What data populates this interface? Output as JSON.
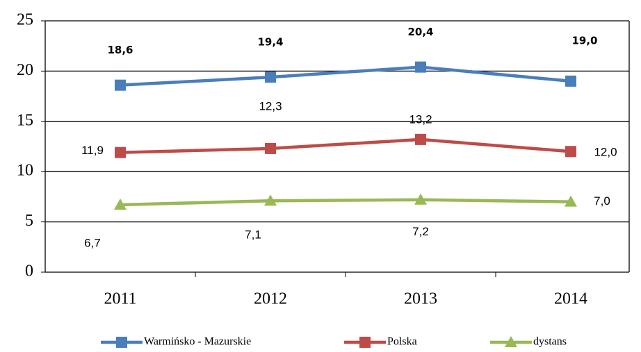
{
  "chart_data": {
    "type": "line",
    "categories": [
      "2011",
      "2012",
      "2013",
      "2014"
    ],
    "series": [
      {
        "name": "Warmińsko - Mazurskie",
        "color": "#4a7ebb",
        "marker": "square",
        "values": [
          18.6,
          19.4,
          20.4,
          19.0
        ],
        "value_labels": [
          "18,6",
          "19,4",
          "20,4",
          "19,0"
        ]
      },
      {
        "name": "Polska",
        "color": "#be4b48",
        "marker": "square",
        "values": [
          11.9,
          12.3,
          13.2,
          12.0
        ],
        "value_labels": [
          "11,9",
          "12,3",
          "13,2",
          "12,0"
        ]
      },
      {
        "name": "dystans",
        "color": "#98b954",
        "marker": "triangle",
        "values": [
          6.7,
          7.1,
          7.2,
          7.0
        ],
        "value_labels": [
          "6,7",
          "7,1",
          "7,2",
          "7,0"
        ]
      }
    ],
    "ylim": [
      0,
      25
    ],
    "yticks": [
      0,
      5,
      10,
      15,
      20,
      25
    ],
    "grid": true,
    "legend": "bottom"
  }
}
